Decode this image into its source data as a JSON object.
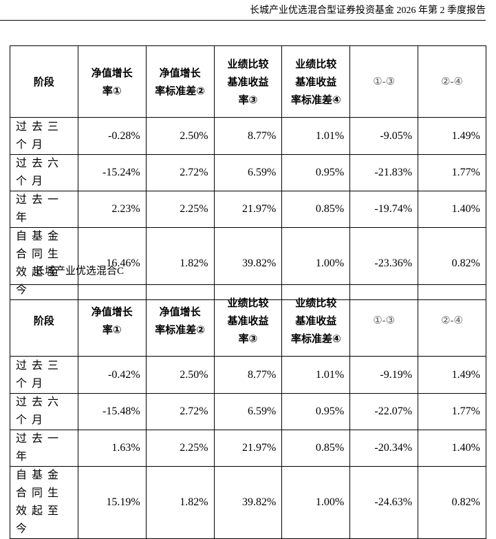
{
  "header": {
    "title": "长城产业优选混合型证券投资基金 2026 年第 2 季度报告"
  },
  "tables": [
    {
      "columns": [
        "阶段",
        "净值增长率①",
        "净值增长率标准差②",
        "业绩比较基准收益率③",
        "业绩比较基准收益率标准差④",
        "①-③",
        "②-④"
      ],
      "rows": [
        [
          "过去三个月",
          "-0.28%",
          "2.50%",
          "8.77%",
          "1.01%",
          "-9.05%",
          "1.49%"
        ],
        [
          "过去六个月",
          "-15.24%",
          "2.72%",
          "6.59%",
          "0.95%",
          "-21.83%",
          "1.77%"
        ],
        [
          "过去一年",
          "2.23%",
          "2.25%",
          "21.97%",
          "0.85%",
          "-19.74%",
          "1.40%"
        ],
        [
          "自基金合同生效起至今",
          "16.46%",
          "1.82%",
          "39.82%",
          "1.00%",
          "-23.36%",
          "0.82%"
        ]
      ]
    },
    {
      "caption": "长城产业优选混合C",
      "columns": [
        "阶段",
        "净值增长率①",
        "净值增长率标准差②",
        "业绩比较基准收益率③",
        "业绩比较基准收益率标准差④",
        "①-③",
        "②-④"
      ],
      "rows": [
        [
          "过去三个月",
          "-0.42%",
          "2.50%",
          "8.77%",
          "1.01%",
          "-9.19%",
          "1.49%"
        ],
        [
          "过去六个月",
          "-15.48%",
          "2.72%",
          "6.59%",
          "0.95%",
          "-22.07%",
          "1.77%"
        ],
        [
          "过去一年",
          "1.63%",
          "2.25%",
          "21.97%",
          "0.85%",
          "-20.34%",
          "1.40%"
        ],
        [
          "自基金合同生效起至今",
          "15.19%",
          "1.82%",
          "39.82%",
          "1.00%",
          "-24.63%",
          "0.82%"
        ]
      ]
    }
  ]
}
